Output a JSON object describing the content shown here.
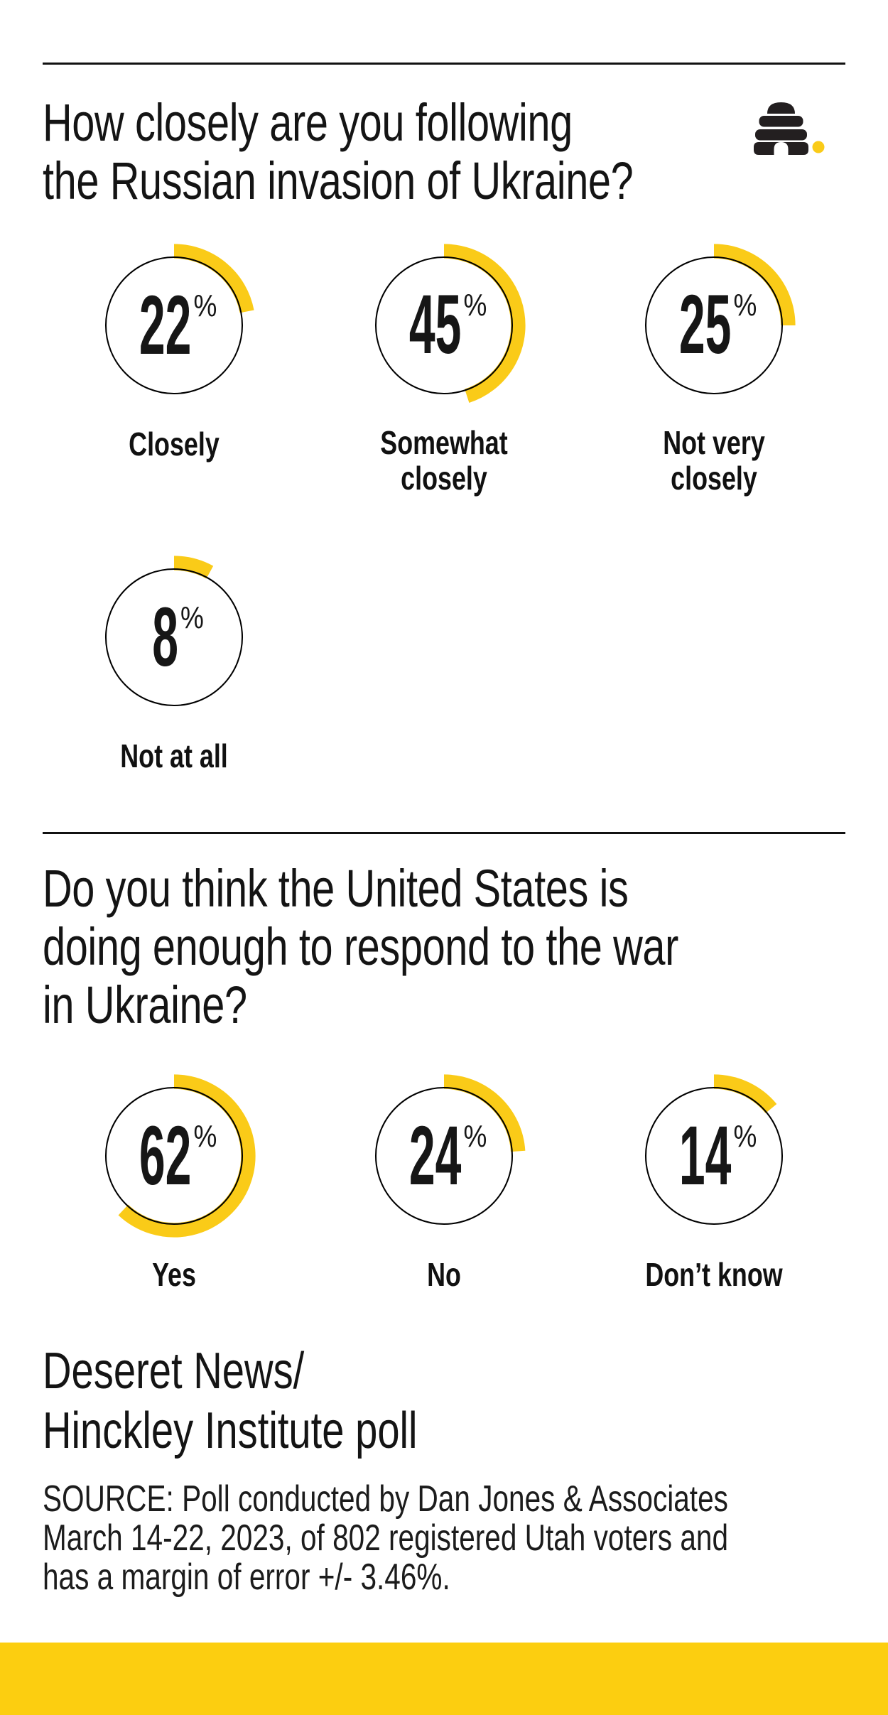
{
  "page": {
    "ink": "#111111",
    "arc_yellow": "#FACB18",
    "bar_yellow": "#FCCE10",
    "logo_black": "#231F20"
  },
  "header": {
    "logo_icon": "beehive-icon",
    "question_lines": [
      "How closely are you following",
      "the Russian invasion of Ukraine?"
    ]
  },
  "section2_question_lines": [
    "Do you think the United States is",
    "doing enough to respond to the war",
    "in Ukraine?"
  ],
  "attribution_lines": [
    "Deseret News/",
    "Hinckley Institute poll"
  ],
  "source_lines": [
    "SOURCE: Poll conducted by Dan Jones & Associates",
    "March 14-22, 2023, of 802 registered Utah voters and",
    "has a margin of error +/- 3.46%."
  ],
  "unit_sign": "%",
  "chart_data": [
    {
      "type": "pie",
      "subtype": "gauge-rings",
      "title": "How closely are you following the Russian invasion of Ukraine?",
      "categories": [
        "Closely",
        "Somewhat closely",
        "Not very closely",
        "Not at all"
      ],
      "values": [
        22,
        45,
        25,
        8
      ],
      "unit": "%",
      "ring_color": "#FACB18",
      "circle_color": "#000000",
      "arc_start": "12 o'clock, clockwise, sweep = value/100 * 360deg"
    },
    {
      "type": "pie",
      "subtype": "gauge-rings",
      "title": "Do you think the United States is doing enough to respond to the war in Ukraine?",
      "categories": [
        "Yes",
        "No",
        "Don’t know"
      ],
      "values": [
        62,
        24,
        14
      ],
      "unit": "%",
      "ring_color": "#FACB18",
      "circle_color": "#000000",
      "arc_start": "12 o'clock, clockwise, sweep = value/100 * 360deg"
    }
  ]
}
